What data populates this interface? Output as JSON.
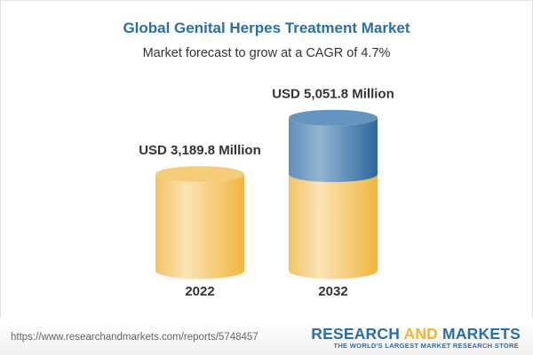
{
  "title": "Global Genital Herpes Treatment Market",
  "subtitle": "Market forecast to grow at a CAGR of 4.7%",
  "chart_data": {
    "type": "bar",
    "categories": [
      "2022",
      "2032"
    ],
    "values": [
      3189.8,
      5051.8
    ],
    "data_labels": [
      "USD 3,189.8 Million",
      "USD 5,051.8 Million"
    ],
    "colors": {
      "base": "#f2c05a",
      "growth": "#3f7fb3"
    }
  },
  "footer": {
    "url": "https://www.researchandmarkets.com/reports/5748457",
    "logo_part1": "RESEARCH ",
    "logo_part2": "AND",
    "logo_part3": " MARKETS",
    "tagline": "THE WORLD'S LARGEST MARKET RESEARCH STORE"
  }
}
